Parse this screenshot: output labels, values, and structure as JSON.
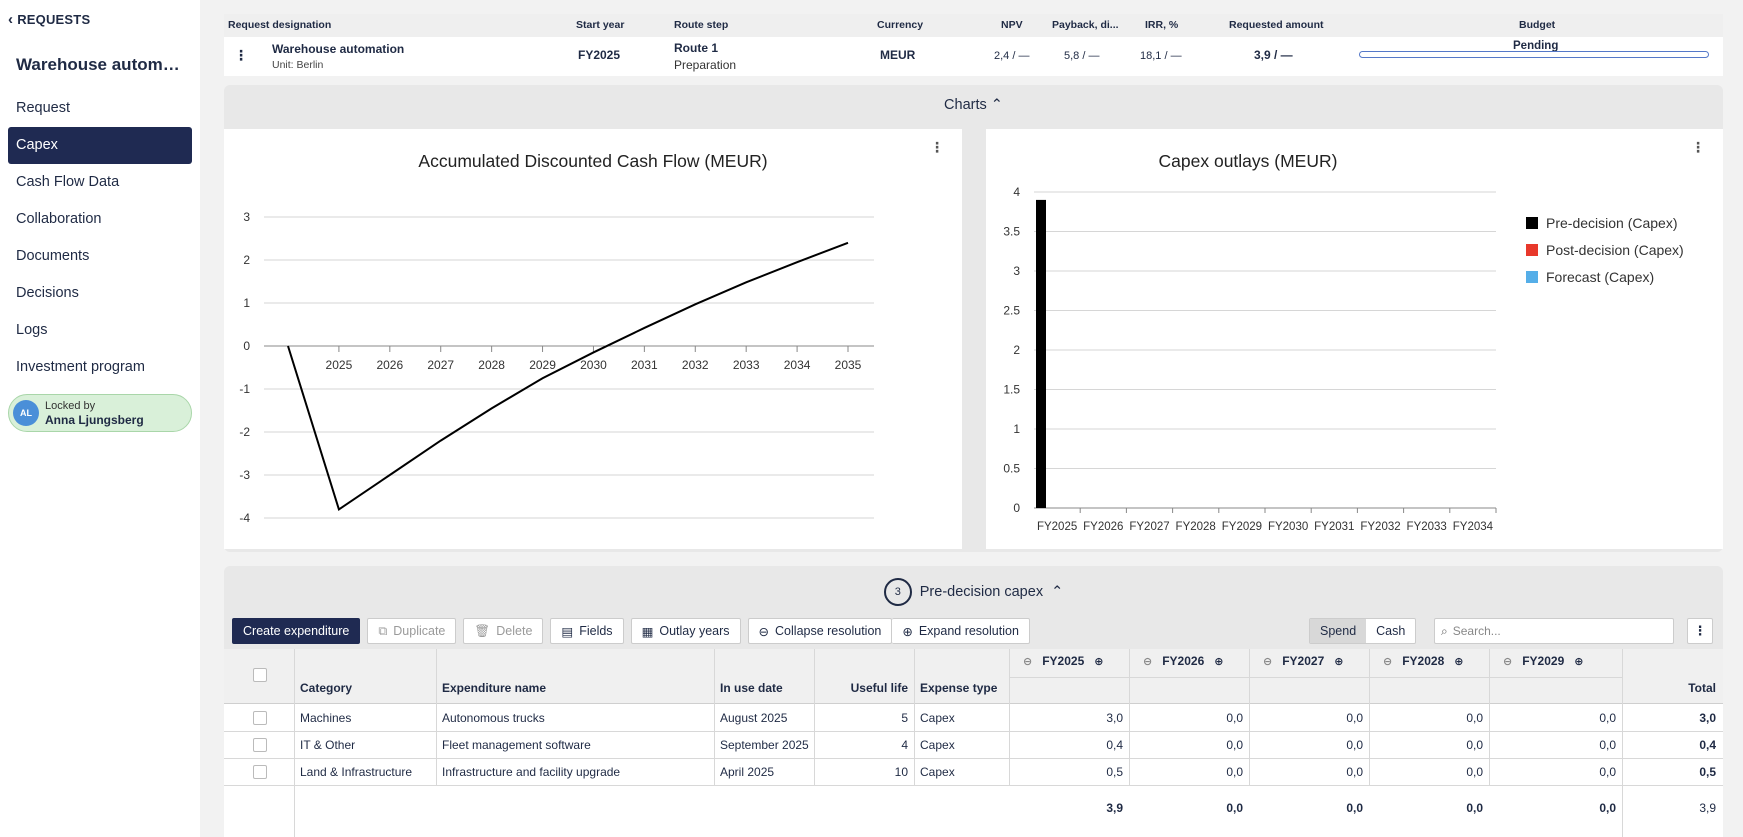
{
  "sidebar": {
    "back_label": "REQUESTS",
    "title": "Warehouse automation",
    "items": [
      {
        "label": "Request",
        "active": false
      },
      {
        "label": "Capex",
        "active": true
      },
      {
        "label": "Cash Flow Data",
        "active": false
      },
      {
        "label": "Collaboration",
        "active": false
      },
      {
        "label": "Documents",
        "active": false
      },
      {
        "label": "Decisions",
        "active": false
      },
      {
        "label": "Logs",
        "active": false
      },
      {
        "label": "Investment program",
        "active": false
      }
    ],
    "lock": {
      "initials": "AL",
      "label": "Locked by",
      "name": "Anna Ljungsberg"
    }
  },
  "header": {
    "columns": {
      "designation": "Request designation",
      "start_year": "Start year",
      "route_step": "Route step",
      "currency": "Currency",
      "npv": "NPV",
      "payback": "Payback, di...",
      "irr": "IRR, %",
      "requested": "Requested amount",
      "budget": "Budget"
    },
    "row": {
      "name": "Warehouse automation",
      "unit": "Unit: Berlin",
      "start_year": "FY2025",
      "route": "Route 1",
      "step": "Preparation",
      "currency": "MEUR",
      "npv": "2,4 / —",
      "payback": "5,8 / —",
      "irr": "18,1 / —",
      "requested": "3,9 / —",
      "budget_status": "Pending"
    }
  },
  "charts_section": {
    "label": "Charts"
  },
  "chart_data": [
    {
      "type": "line",
      "title": "Accumulated Discounted Cash Flow (MEUR)",
      "x": [
        2024,
        2025,
        2026,
        2027,
        2028,
        2029,
        2030,
        2031,
        2032,
        2033,
        2034,
        2035
      ],
      "x_tick_labels": [
        "2025",
        "2026",
        "2027",
        "2028",
        "2029",
        "2030",
        "2031",
        "2032",
        "2033",
        "2034",
        "2035"
      ],
      "series": [
        {
          "values": [
            0,
            -3.8,
            -3.0,
            -2.2,
            -1.45,
            -0.75,
            -0.15,
            0.42,
            0.97,
            1.48,
            1.95,
            2.4
          ],
          "color": "#000000"
        }
      ],
      "y_ticks": [
        3,
        2,
        1,
        0,
        -1,
        -2,
        -3,
        -4
      ],
      "ylim": [
        -4,
        3
      ],
      "grid": true
    },
    {
      "type": "bar",
      "title": "Capex outlays (MEUR)",
      "categories": [
        "FY2025",
        "FY2026",
        "FY2027",
        "FY2028",
        "FY2029",
        "FY2030",
        "FY2031",
        "FY2032",
        "FY2033",
        "FY2034"
      ],
      "series": [
        {
          "name": "Pre-decision (Capex)",
          "color": "#000000",
          "values": [
            3.9,
            0,
            0,
            0,
            0,
            0,
            0,
            0,
            0,
            0
          ]
        },
        {
          "name": "Post-decision (Capex)",
          "color": "#e8382b",
          "values": [
            0,
            0,
            0,
            0,
            0,
            0,
            0,
            0,
            0,
            0
          ]
        },
        {
          "name": "Forecast (Capex)",
          "color": "#55aee8",
          "values": [
            0,
            0,
            0,
            0,
            0,
            0,
            0,
            0,
            0,
            0
          ]
        }
      ],
      "y_ticks": [
        "4",
        "3.5",
        "3",
        "2.5",
        "2",
        "1.5",
        "1",
        "0.5",
        "0"
      ],
      "ylim": [
        0,
        4
      ],
      "legend": "right",
      "grid": true
    }
  ],
  "capex_section": {
    "count": "3",
    "label": "Pre-decision capex"
  },
  "toolbar": {
    "create": "Create expenditure",
    "duplicate": "Duplicate",
    "delete": "Delete",
    "fields": "Fields",
    "outlay_years": "Outlay years",
    "collapse": "Collapse resolution",
    "expand": "Expand resolution",
    "spend": "Spend",
    "cash": "Cash",
    "search_placeholder": "Search..."
  },
  "grid": {
    "headers": {
      "category": "Category",
      "name": "Expenditure name",
      "in_use": "In use date",
      "life": "Useful life",
      "type": "Expense type",
      "fy": [
        "FY2025",
        "FY2026",
        "FY2027",
        "FY2028",
        "FY2029"
      ],
      "total": "Total"
    },
    "rows": [
      {
        "category": "Machines",
        "name": "Autonomous trucks",
        "in_use": "August 2025",
        "life": "5",
        "type": "Capex",
        "fy": [
          "3,0",
          "0,0",
          "0,0",
          "0,0",
          "0,0"
        ],
        "total": "3,0"
      },
      {
        "category": "IT & Other",
        "name": "Fleet management software",
        "in_use": "September 2025",
        "life": "4",
        "type": "Capex",
        "fy": [
          "0,4",
          "0,0",
          "0,0",
          "0,0",
          "0,0"
        ],
        "total": "0,4"
      },
      {
        "category": "Land & Infrastructure",
        "name": "Infrastructure and facility upgrade",
        "in_use": "April 2025",
        "life": "10",
        "type": "Capex",
        "fy": [
          "0,5",
          "0,0",
          "0,0",
          "0,0",
          "0,0"
        ],
        "total": "0,5"
      }
    ],
    "totals": {
      "fy": [
        "3,9",
        "0,0",
        "0,0",
        "0,0",
        "0,0"
      ],
      "total": "3,9"
    }
  }
}
